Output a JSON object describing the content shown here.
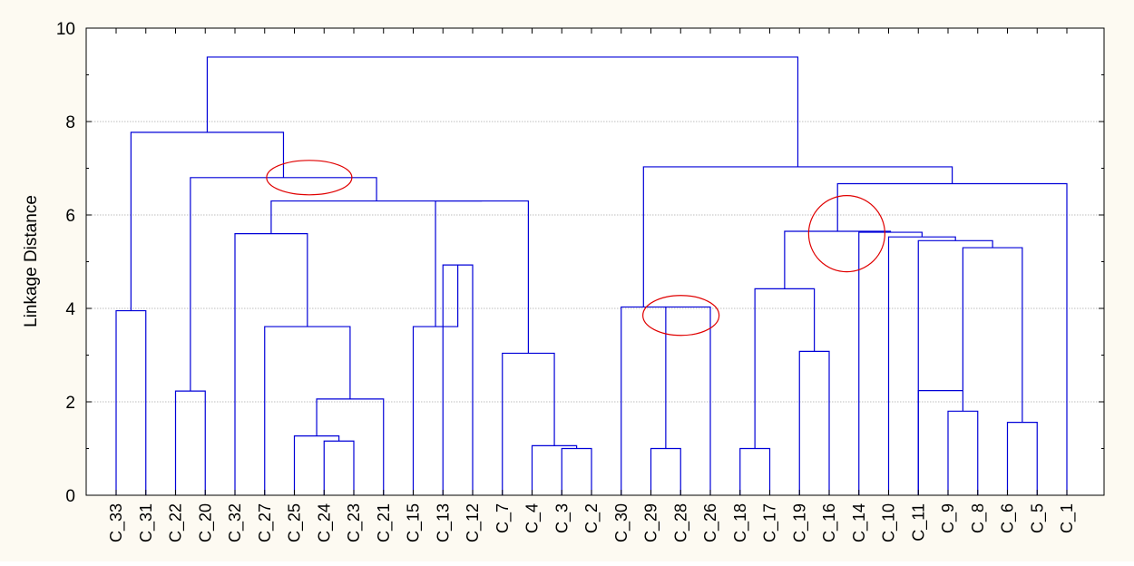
{
  "chart_data": {
    "type": "dendrogram",
    "title": "",
    "xlabel": "",
    "ylabel": "Linkage Distance",
    "ylim": [
      0,
      10
    ],
    "yticks": [
      0,
      2,
      4,
      6,
      8,
      10
    ],
    "grid": true,
    "leaves": [
      "C_33",
      "C_31",
      "C_22",
      "C_20",
      "C_32",
      "C_27",
      "C_25",
      "C_24",
      "C_23",
      "C_21",
      "C_15",
      "C_13",
      "C_12",
      "C_7",
      "C_4",
      "C_3",
      "C_2",
      "C_30",
      "C_29",
      "C_28",
      "C_26",
      "C_18",
      "C_17",
      "C_19",
      "C_16",
      "C_14",
      "C_10",
      "C_11",
      "C_9",
      "C_8",
      "C_6",
      "C_5",
      "C_1"
    ],
    "merges": [
      {
        "left": "C_33",
        "right": "C_31",
        "height": 3.95
      },
      {
        "left": "C_22",
        "right": "C_20",
        "height": 2.23
      },
      {
        "left": "C_24",
        "right": "C_23",
        "height": 1.16
      },
      {
        "left": "C_25",
        "right": "C_24+C_23",
        "height": 1.27
      },
      {
        "left": "C_25+C_24+C_23",
        "right": "C_21",
        "height": 2.06
      },
      {
        "left": "C_27",
        "right": "C_25..C_21",
        "height": 3.61
      },
      {
        "left": "C_32",
        "right": "C_27..C_21",
        "height": 5.6
      },
      {
        "left": "C_13",
        "right": "C_12",
        "height": 4.93
      },
      {
        "left": "C_15",
        "right": "C_13+C_12",
        "height": 3.61
      },
      {
        "left": "C_3",
        "right": "C_2",
        "height": 1.0
      },
      {
        "left": "C_4",
        "right": "C_3+C_2",
        "height": 1.06
      },
      {
        "left": "C_7",
        "right": "C_4+C_3+C_2",
        "height": 3.04
      },
      {
        "left": "C_15..C_12",
        "right": "C_7..C_2",
        "height": 6.3
      },
      {
        "left": "C_32..C_21",
        "right": "C_15..C_2",
        "height": 6.3
      },
      {
        "left": "C_22+C_20",
        "right": "C_32..C_2",
        "height": 6.8
      },
      {
        "left": "C_33+C_31",
        "right": "C_22..C_2",
        "height": 7.77
      },
      {
        "left": "C_29",
        "right": "C_28",
        "height": 1.0
      },
      {
        "left": "C_30",
        "right": "C_29+C_28+C_26",
        "height": 4.03
      },
      {
        "left": "C_18",
        "right": "C_17",
        "height": 1.0
      },
      {
        "left": "C_19",
        "right": "C_16",
        "height": 3.08
      },
      {
        "left": "C_18+C_17",
        "right": "C_19+C_16",
        "height": 4.42
      },
      {
        "left": "C_9",
        "right": "C_8",
        "height": 1.8
      },
      {
        "left": "C_9+C_8",
        "right": "C_6+C_5",
        "height": 2.24
      },
      {
        "left": "C_6",
        "right": "C_5",
        "height": 1.56
      },
      {
        "left": "C_9..C_8",
        "right": "C_6+C_5",
        "height": 5.3
      },
      {
        "left": "C_11",
        "right": "C_9..C_5",
        "height": 5.45
      },
      {
        "left": "C_10",
        "right": "C_11..C_5",
        "height": 5.53
      },
      {
        "left": "C_14",
        "right": "C_10..C_5",
        "height": 5.63
      },
      {
        "left": "C_18..C_16",
        "right": "C_14..C_5",
        "height": 5.65
      },
      {
        "left": "C_18..C_5",
        "right": "C_1",
        "height": 6.67
      },
      {
        "left": "C_30..C_26",
        "right": "C_18..C_1",
        "height": 7.03
      },
      {
        "left": "C_33..C_2",
        "right": "C_30..C_1",
        "height": 9.38
      }
    ],
    "highlights": [
      {
        "label": "",
        "center_leaf_between": [
          "C_25",
          "C_24"
        ],
        "height": 6.8
      },
      {
        "label": "",
        "center_leaf_between": [
          "C_28",
          "C_26"
        ],
        "height": 3.85
      },
      {
        "label": "",
        "center_leaf_between": [
          "C_16",
          "C_14"
        ],
        "height": 5.6
      }
    ]
  },
  "colors": {
    "links": "#0000d8",
    "highlight": "#e00000",
    "grid": "#7f7f7f",
    "background": "#fdfaf2"
  }
}
